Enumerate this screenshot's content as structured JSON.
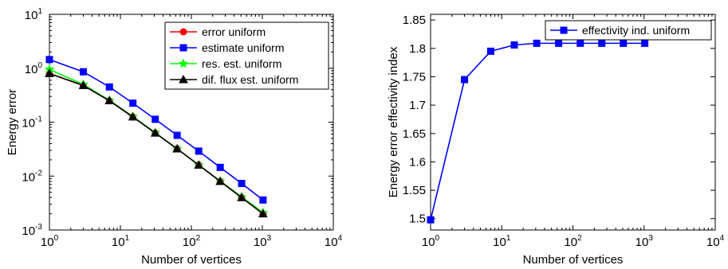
{
  "chart_data": [
    {
      "type": "line",
      "xscale": "log",
      "yscale": "log",
      "xlabel": "Number of vertices",
      "ylabel": "Energy error",
      "xlim": [
        1,
        10000
      ],
      "ylim": [
        0.001,
        10
      ],
      "xticks": [
        {
          "base": "10",
          "exp": "0"
        },
        {
          "base": "10",
          "exp": "1"
        },
        {
          "base": "10",
          "exp": "2"
        },
        {
          "base": "10",
          "exp": "3"
        },
        {
          "base": "10",
          "exp": "4"
        }
      ],
      "yticks": [
        {
          "base": "10",
          "exp": "-3"
        },
        {
          "base": "10",
          "exp": "-2"
        },
        {
          "base": "10",
          "exp": "-1"
        },
        {
          "base": "10",
          "exp": "0"
        },
        {
          "base": "10",
          "exp": "1"
        }
      ],
      "legend_position": "top-right",
      "grid": false,
      "x": [
        1,
        3,
        7,
        15,
        31,
        63,
        127,
        255,
        511,
        1023
      ],
      "series": [
        {
          "name": "error uniform",
          "color": "#ff0000",
          "marker": "circle",
          "values": [
            0.8,
            0.48,
            0.25,
            0.125,
            0.063,
            0.032,
            0.016,
            0.008,
            0.004,
            0.002
          ]
        },
        {
          "name": "estimate uniform",
          "color": "#0000ff",
          "marker": "square",
          "values": [
            1.45,
            0.86,
            0.45,
            0.225,
            0.113,
            0.057,
            0.029,
            0.0145,
            0.0073,
            0.0036
          ]
        },
        {
          "name": "res. est. uniform",
          "color": "#00ff00",
          "marker": "star",
          "values": [
            0.95,
            0.5,
            0.255,
            0.127,
            0.064,
            0.032,
            0.016,
            0.0081,
            0.0041,
            0.0021
          ]
        },
        {
          "name": "dif. flux est. uniform",
          "color": "#000000",
          "marker": "triangle",
          "values": [
            0.8,
            0.48,
            0.25,
            0.125,
            0.063,
            0.032,
            0.016,
            0.008,
            0.004,
            0.002
          ]
        }
      ]
    },
    {
      "type": "line",
      "xscale": "log",
      "yscale": "linear",
      "xlabel": "Number of vertices",
      "ylabel": "Energy error effectivity index",
      "xlim": [
        1,
        10000
      ],
      "ylim": [
        1.48,
        1.86
      ],
      "xticks": [
        {
          "base": "10",
          "exp": "0"
        },
        {
          "base": "10",
          "exp": "1"
        },
        {
          "base": "10",
          "exp": "2"
        },
        {
          "base": "10",
          "exp": "3"
        },
        {
          "base": "10",
          "exp": "4"
        }
      ],
      "yticks": [
        "1.5",
        "1.55",
        "1.6",
        "1.65",
        "1.7",
        "1.75",
        "1.8",
        "1.85"
      ],
      "legend_position": "top-right",
      "grid": false,
      "x": [
        1,
        3,
        7,
        15,
        31,
        63,
        127,
        255,
        511,
        1023
      ],
      "series": [
        {
          "name": "effectivity ind. uniform",
          "color": "#0000ff",
          "marker": "square",
          "values": [
            1.498,
            1.745,
            1.795,
            1.806,
            1.809,
            1.809,
            1.809,
            1.809,
            1.809,
            1.809
          ]
        }
      ]
    }
  ]
}
